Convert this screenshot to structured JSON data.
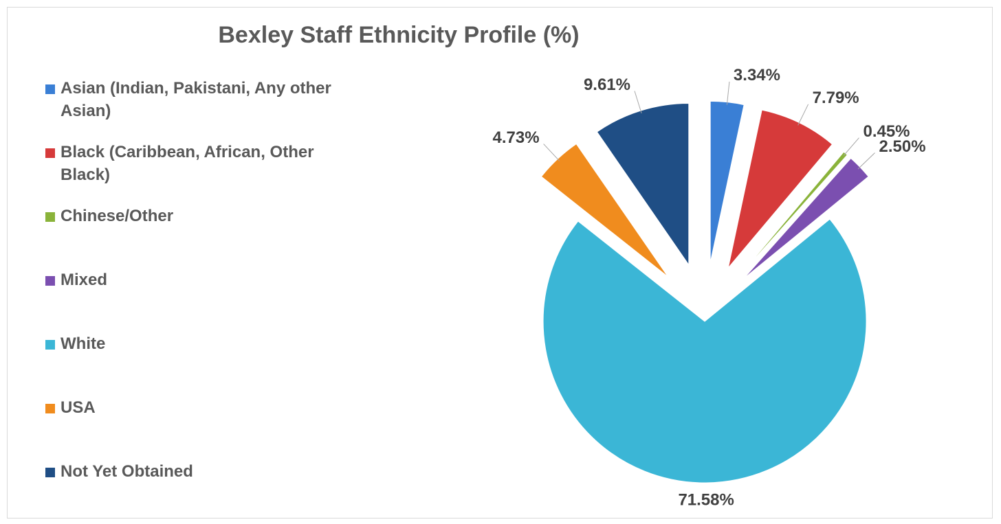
{
  "chart_data": {
    "type": "pie",
    "title": "Bexley Staff Ethnicity Profile (%)",
    "categories": [
      "Asian (Indian, Pakistani, Any other Asian)",
      "Black (Caribbean, African, Other Black)",
      "Chinese/Other",
      "Mixed",
      "White",
      "USA",
      "Not Yet Obtained"
    ],
    "values": [
      3.34,
      7.79,
      0.45,
      2.5,
      71.58,
      4.73,
      9.61
    ],
    "value_labels": [
      "3.34%",
      "7.79%",
      "0.45%",
      "2.50%",
      "71.58%",
      "4.73%",
      "9.61%"
    ],
    "colors": [
      "#3a7fd5",
      "#d63a3a",
      "#8ab33a",
      "#7b4fb0",
      "#3bb6d6",
      "#f08c1e",
      "#1f4e85"
    ],
    "legend": "left"
  }
}
